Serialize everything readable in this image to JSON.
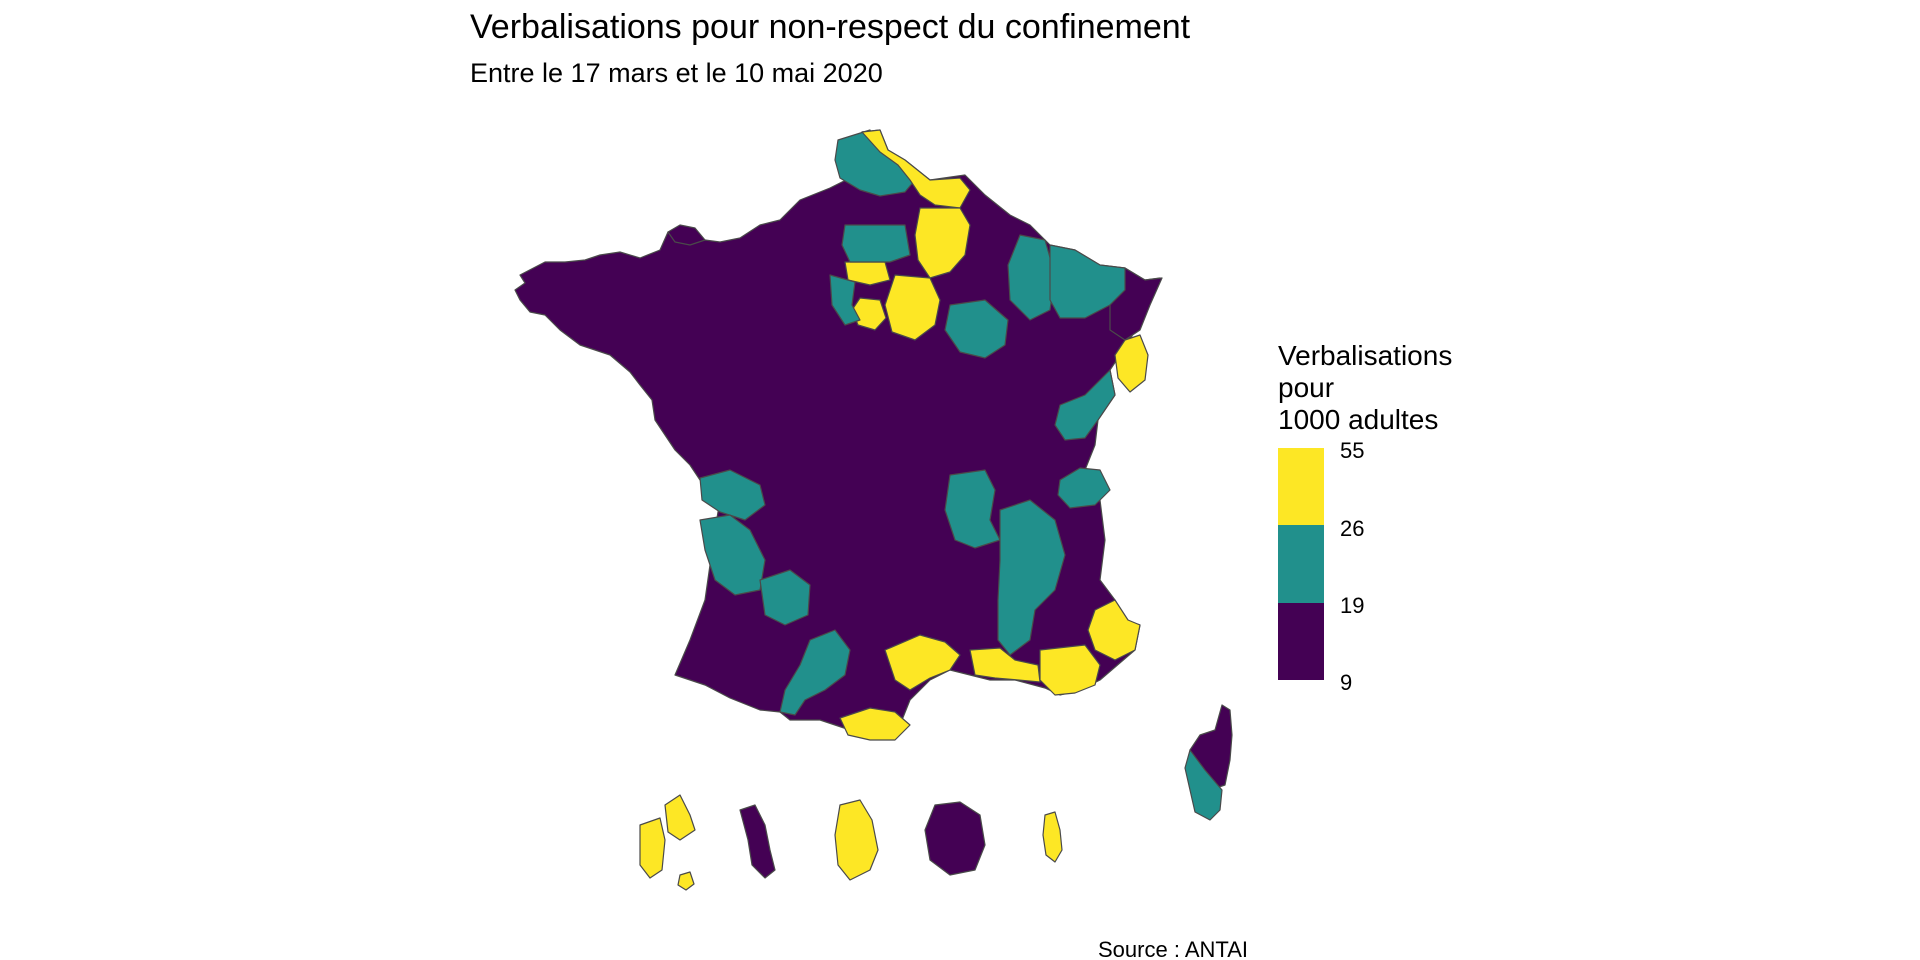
{
  "title": "Verbalisations pour non-respect du confinement",
  "subtitle": "Entre le 17 mars et le 10 mai 2020",
  "caption": "Source : ANTAI",
  "legend": {
    "title_lines": [
      "Verbalisations",
      "pour",
      "1000 adultes"
    ],
    "breaks": [
      "55",
      "26",
      "19",
      "9"
    ],
    "bins": [
      {
        "range": "26–55",
        "color": "#FDE725"
      },
      {
        "range": "19–26",
        "color": "#21908C"
      },
      {
        "range": "9–19",
        "color": "#440154"
      }
    ]
  },
  "colors": {
    "high": "#FDE725",
    "mid": "#21908C",
    "low": "#440154",
    "border": "#4a4a4a"
  },
  "chart_data": {
    "type": "choropleth",
    "region": "France (départements)",
    "value_bins": [
      [
        9,
        19
      ],
      [
        19,
        26
      ],
      [
        26,
        55
      ]
    ]
  }
}
